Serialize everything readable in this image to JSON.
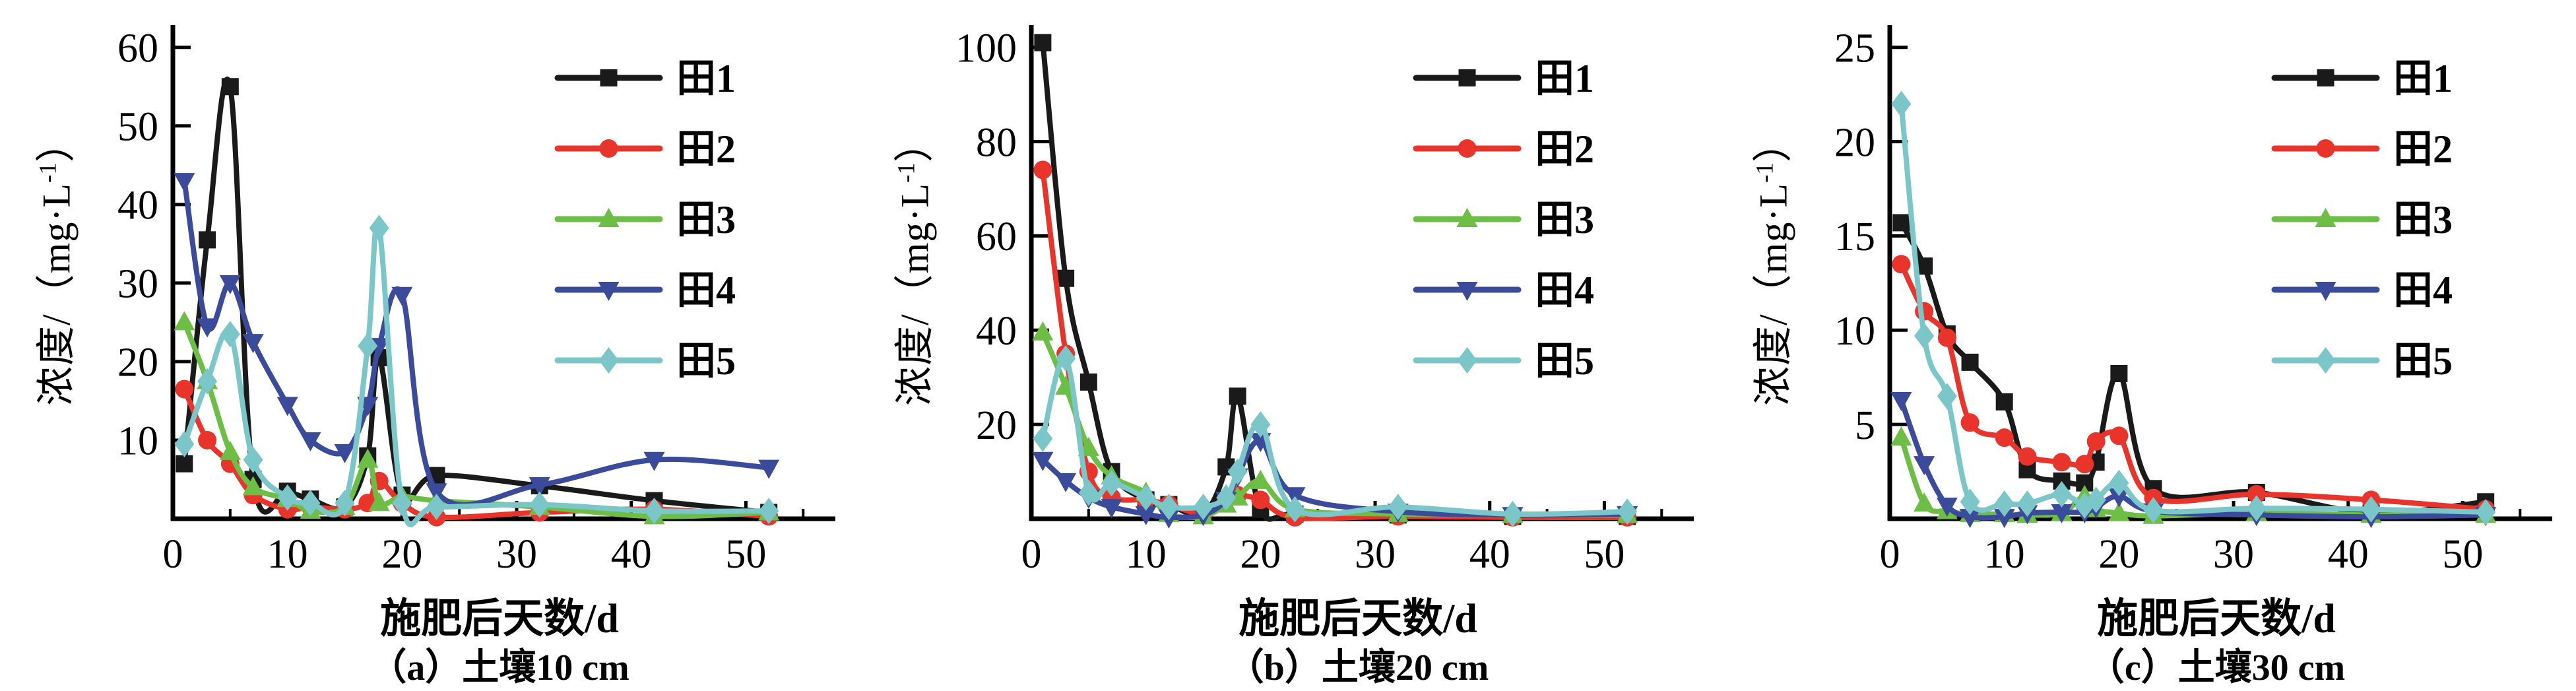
{
  "figure": {
    "background": "#ffffff",
    "series_colors": {
      "tian1": "#1a1a1a",
      "tian2": "#e8342b",
      "tian3": "#6cbe45",
      "tian4": "#3a4b9c",
      "tian5": "#7ac6c9"
    },
    "legend_position": "top-right"
  },
  "chart_data": [
    {
      "type": "line",
      "panel": "a",
      "panel_label": "（a）土壤10 cm",
      "xlabel": "施肥后天数/d",
      "ylabel": "浓度/（mg·L⁻¹）",
      "ylabel_base": "浓度/（mg·L",
      "ylabel_sup": "-1",
      "ylabel_close": "）",
      "xlim": [
        0,
        55
      ],
      "ylim": [
        0,
        60
      ],
      "xticks": [
        0,
        10,
        20,
        30,
        40,
        50
      ],
      "xminor": [
        5,
        15,
        25,
        35,
        45,
        55
      ],
      "yticks": [
        10,
        20,
        30,
        40,
        50,
        60
      ],
      "grid": false,
      "x": [
        1,
        3,
        5,
        7,
        10,
        12,
        15,
        17,
        18,
        20,
        23,
        32,
        42,
        52
      ],
      "series": [
        {
          "name": "田1",
          "marker": "square",
          "color": "#1a1a1a",
          "values": [
            7,
            35.5,
            55,
            5,
            3.5,
            2.5,
            1.5,
            8,
            20.5,
            3,
            5.5,
            4.2,
            2.3,
            0.8
          ]
        },
        {
          "name": "田2",
          "marker": "circle",
          "color": "#e8342b",
          "values": [
            16.5,
            10,
            7,
            3,
            1.2,
            1.5,
            1.2,
            2,
            4.8,
            2,
            0.2,
            0.8,
            1.2,
            0.3
          ]
        },
        {
          "name": "田3",
          "marker": "triangle-up",
          "color": "#6cbe45",
          "values": [
            25,
            17.5,
            8.5,
            4,
            2.5,
            1,
            1.5,
            7.5,
            2,
            2.8,
            2.3,
            1.5,
            0.3,
            0.8
          ]
        },
        {
          "name": "田4",
          "marker": "triangle-down",
          "color": "#3a4b9c",
          "values": [
            43,
            24.5,
            30,
            22.5,
            14.5,
            10,
            8.5,
            14.5,
            22,
            28.5,
            3.5,
            4.3,
            7.5,
            6.5
          ]
        },
        {
          "name": "田5",
          "marker": "diamond",
          "color": "#7ac6c9",
          "values": [
            9.5,
            17.5,
            23.5,
            7.5,
            2.7,
            2,
            2,
            22,
            37,
            2,
            1.5,
            1.8,
            1,
            1
          ]
        }
      ]
    },
    {
      "type": "line",
      "panel": "b",
      "panel_label": "（b）土壤20 cm",
      "xlabel": "施肥后天数/d",
      "ylabel": "浓度/（mg·L⁻¹）",
      "ylabel_base": "浓度/（mg·L",
      "ylabel_sup": "-1",
      "ylabel_close": "）",
      "xlim": [
        0,
        55
      ],
      "ylim": [
        0,
        100
      ],
      "xticks": [
        0,
        10,
        20,
        30,
        40,
        50
      ],
      "xminor": [
        5,
        15,
        25,
        35,
        45,
        55
      ],
      "yticks": [
        20,
        40,
        60,
        80,
        100
      ],
      "grid": false,
      "x": [
        1,
        3,
        5,
        7,
        10,
        12,
        15,
        17,
        18,
        20,
        23,
        32,
        42,
        52
      ],
      "series": [
        {
          "name": "田1",
          "marker": "square",
          "color": "#1a1a1a",
          "values": [
            101,
            51,
            29,
            10,
            4,
            3,
            1,
            11,
            26,
            2,
            1,
            0.8,
            0.5,
            0.5
          ]
        },
        {
          "name": "田2",
          "marker": "circle",
          "color": "#e8342b",
          "values": [
            74,
            35,
            10,
            4.5,
            4,
            3,
            1,
            4,
            5,
            4,
            0.3,
            0.5,
            0.3,
            0.3
          ]
        },
        {
          "name": "田3",
          "marker": "triangle-up",
          "color": "#6cbe45",
          "values": [
            39.5,
            28,
            15,
            9,
            5.5,
            1,
            0.5,
            3,
            4.5,
            8,
            2,
            1,
            0.8,
            0.8
          ]
        },
        {
          "name": "田4",
          "marker": "triangle-down",
          "color": "#3a4b9c",
          "values": [
            12.5,
            8,
            4.5,
            2.5,
            1,
            0.3,
            0.8,
            4,
            9,
            16.5,
            5,
            1.5,
            0.8,
            1
          ]
        },
        {
          "name": "田5",
          "marker": "diamond",
          "color": "#7ac6c9",
          "values": [
            17,
            34,
            5.5,
            7.5,
            4.5,
            2.5,
            2.5,
            4.5,
            10,
            20,
            2,
            2.5,
            1,
            1.5
          ]
        }
      ]
    },
    {
      "type": "line",
      "panel": "c",
      "panel_label": "（c）土壤30 cm",
      "xlabel": "施肥后天数/d",
      "ylabel": "浓度/（mg·L⁻¹）",
      "ylabel_base": "浓度/（mg·L",
      "ylabel_sup": "-1",
      "ylabel_close": "）",
      "xlim": [
        0,
        55
      ],
      "ylim": [
        0,
        25
      ],
      "xticks": [
        0,
        10,
        20,
        30,
        40,
        50
      ],
      "xminor": [
        5,
        15,
        25,
        35,
        45,
        55
      ],
      "yticks": [
        5,
        10,
        15,
        20,
        25
      ],
      "grid": false,
      "x": [
        1,
        3,
        5,
        7,
        10,
        12,
        15,
        17,
        18,
        20,
        23,
        32,
        42,
        52
      ],
      "series": [
        {
          "name": "田1",
          "marker": "square",
          "color": "#1a1a1a",
          "values": [
            15.7,
            13.4,
            9.8,
            8.3,
            6.2,
            2.6,
            2,
            1.9,
            3,
            7.7,
            1.6,
            1.4,
            0.3,
            0.9
          ]
        },
        {
          "name": "田2",
          "marker": "circle",
          "color": "#e8342b",
          "values": [
            13.5,
            11,
            9.6,
            5.1,
            4.3,
            3.3,
            3,
            2.9,
            4.1,
            4.4,
            1.1,
            1.3,
            1,
            0.5
          ]
        },
        {
          "name": "田3",
          "marker": "triangle-up",
          "color": "#6cbe45",
          "values": [
            4.3,
            0.8,
            0.4,
            0.25,
            0.25,
            0.2,
            0.3,
            1.2,
            0.5,
            0.3,
            0.15,
            0.3,
            0.2,
            0.2
          ]
        },
        {
          "name": "田4",
          "marker": "triangle-down",
          "color": "#3a4b9c",
          "values": [
            6.3,
            2.9,
            0.7,
            0.1,
            0.1,
            0.3,
            0.35,
            0.35,
            0.6,
            1.2,
            0.4,
            0.2,
            0.1,
            0.2
          ]
        },
        {
          "name": "田5",
          "marker": "diamond",
          "color": "#7ac6c9",
          "values": [
            22,
            9.7,
            6.5,
            0.9,
            0.8,
            0.8,
            1.3,
            0.7,
            1,
            1.9,
            0.45,
            0.55,
            0.5,
            0.35
          ]
        }
      ]
    }
  ]
}
